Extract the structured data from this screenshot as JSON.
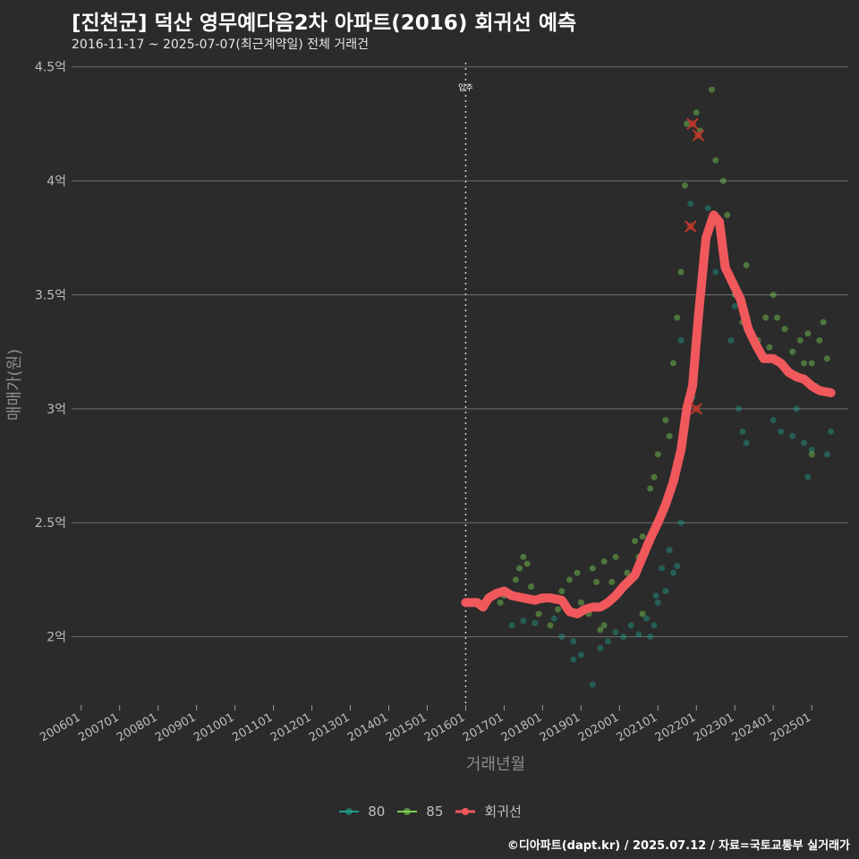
{
  "header": {
    "title": "[진천군] 덕산 영무예다음2차 아파트(2016) 회귀선 예측",
    "subtitle": "2016-11-17 ~ 2025-07-07(최근계약일) 전체 거래건"
  },
  "caption": "©디아파트(dapt.kr) / 2025.07.12 / 자료=국토교통부 실거래가",
  "colors": {
    "background": "#2b2b2b",
    "grid": "#6e6e6e",
    "series_80": "#1f9e89",
    "series_85": "#7ad151",
    "regression": "#f0585c",
    "outlier": "#c0392b"
  },
  "chart_data": {
    "type": "scatter",
    "title": "[진천군] 덕산 영무예다음2차 아파트(2016) 회귀선 예측",
    "xlabel": "거래년월",
    "ylabel": "매매가(원)",
    "ylim": [
      1.7,
      4.55
    ],
    "y_unit": "억",
    "yticks": [
      2,
      2.5,
      3,
      3.5,
      4,
      4.5
    ],
    "ytick_labels": [
      "2억",
      "2.5억",
      "3억",
      "3.5억",
      "4억",
      "4.5억"
    ],
    "xlim": [
      2005.75,
      2025.95
    ],
    "xticks": [
      "200601",
      "200701",
      "200801",
      "200901",
      "201001",
      "201101",
      "201201",
      "201301",
      "201401",
      "201501",
      "201601",
      "201701",
      "201801",
      "201901",
      "202001",
      "202101",
      "202201",
      "202301",
      "202401",
      "202501"
    ],
    "grid": "horizontal",
    "legend_position": "bottom",
    "annotation": {
      "x": 2016.0,
      "label": "입주"
    },
    "series": [
      {
        "name": "80",
        "points": [
          [
            2017.2,
            2.05
          ],
          [
            2017.5,
            2.07
          ],
          [
            2017.8,
            2.06
          ],
          [
            2018.3,
            2.08
          ],
          [
            2018.5,
            2.0
          ],
          [
            2018.8,
            1.98
          ],
          [
            2018.8,
            1.9
          ],
          [
            2019.0,
            1.92
          ],
          [
            2019.3,
            1.79
          ],
          [
            2019.5,
            1.95
          ],
          [
            2019.7,
            1.98
          ],
          [
            2019.9,
            2.02
          ],
          [
            2020.1,
            2.0
          ],
          [
            2020.3,
            2.05
          ],
          [
            2020.5,
            2.01
          ],
          [
            2020.7,
            2.08
          ],
          [
            2020.8,
            2.0
          ],
          [
            2020.9,
            2.05
          ],
          [
            2020.95,
            2.18
          ],
          [
            2021.0,
            2.15
          ],
          [
            2021.1,
            2.3
          ],
          [
            2021.2,
            2.2
          ],
          [
            2021.3,
            2.38
          ],
          [
            2021.4,
            2.28
          ],
          [
            2021.5,
            2.31
          ],
          [
            2021.6,
            2.5
          ],
          [
            2021.6,
            3.3
          ],
          [
            2021.85,
            3.9
          ],
          [
            2021.9,
            3.05
          ],
          [
            2022.3,
            3.88
          ],
          [
            2022.5,
            3.6
          ],
          [
            2022.9,
            3.3
          ],
          [
            2023.0,
            3.45
          ],
          [
            2023.1,
            3.0
          ],
          [
            2023.2,
            2.9
          ],
          [
            2023.3,
            2.85
          ],
          [
            2024.0,
            2.95
          ],
          [
            2024.2,
            2.9
          ],
          [
            2024.5,
            2.88
          ],
          [
            2024.6,
            3.0
          ],
          [
            2024.8,
            2.85
          ],
          [
            2024.9,
            2.7
          ],
          [
            2025.0,
            2.82
          ],
          [
            2025.5,
            2.9
          ],
          [
            2025.4,
            2.8
          ]
        ]
      },
      {
        "name": "85",
        "points": [
          [
            2016.9,
            2.15
          ],
          [
            2017.0,
            2.18
          ],
          [
            2017.3,
            2.25
          ],
          [
            2017.4,
            2.3
          ],
          [
            2017.5,
            2.35
          ],
          [
            2017.6,
            2.32
          ],
          [
            2017.7,
            2.22
          ],
          [
            2017.9,
            2.1
          ],
          [
            2018.0,
            2.16
          ],
          [
            2018.2,
            2.05
          ],
          [
            2018.4,
            2.12
          ],
          [
            2018.5,
            2.2
          ],
          [
            2018.7,
            2.25
          ],
          [
            2018.9,
            2.28
          ],
          [
            2019.0,
            2.15
          ],
          [
            2019.2,
            2.1
          ],
          [
            2019.3,
            2.3
          ],
          [
            2019.4,
            2.24
          ],
          [
            2019.5,
            2.03
          ],
          [
            2019.6,
            2.33
          ],
          [
            2019.8,
            2.24
          ],
          [
            2019.9,
            2.35
          ],
          [
            2020.0,
            2.2
          ],
          [
            2020.2,
            2.28
          ],
          [
            2020.4,
            2.42
          ],
          [
            2020.5,
            2.35
          ],
          [
            2020.6,
            2.44
          ],
          [
            2020.8,
            2.65
          ],
          [
            2020.9,
            2.7
          ],
          [
            2021.0,
            2.8
          ],
          [
            2021.2,
            2.95
          ],
          [
            2021.3,
            2.88
          ],
          [
            2021.4,
            3.2
          ],
          [
            2021.5,
            3.4
          ],
          [
            2021.6,
            3.6
          ],
          [
            2021.7,
            3.98
          ],
          [
            2021.75,
            4.25
          ],
          [
            2022.0,
            4.3
          ],
          [
            2022.1,
            4.22
          ],
          [
            2022.4,
            4.4
          ],
          [
            2022.5,
            4.09
          ],
          [
            2022.7,
            4.0
          ],
          [
            2022.8,
            3.85
          ],
          [
            2023.0,
            3.5
          ],
          [
            2023.2,
            3.38
          ],
          [
            2023.3,
            3.63
          ],
          [
            2023.6,
            3.3
          ],
          [
            2023.8,
            3.4
          ],
          [
            2023.9,
            3.27
          ],
          [
            2024.0,
            3.5
          ],
          [
            2024.1,
            3.4
          ],
          [
            2024.3,
            3.35
          ],
          [
            2024.5,
            3.25
          ],
          [
            2024.7,
            3.3
          ],
          [
            2024.8,
            3.2
          ],
          [
            2024.9,
            3.33
          ],
          [
            2025.0,
            3.2
          ],
          [
            2025.1,
            3.1
          ],
          [
            2025.2,
            3.3
          ],
          [
            2025.3,
            3.38
          ],
          [
            2025.4,
            3.22
          ],
          [
            2025.0,
            2.8
          ],
          [
            2024.6,
            3.15
          ],
          [
            2020.6,
            2.1
          ],
          [
            2019.6,
            2.05
          ]
        ]
      },
      {
        "name": "회귀선",
        "points": [
          [
            2016.0,
            2.15
          ],
          [
            2016.3,
            2.15
          ],
          [
            2016.45,
            2.13
          ],
          [
            2016.6,
            2.17
          ],
          [
            2016.8,
            2.19
          ],
          [
            2017.0,
            2.2
          ],
          [
            2017.2,
            2.18
          ],
          [
            2017.5,
            2.17
          ],
          [
            2017.8,
            2.16
          ],
          [
            2018.0,
            2.17
          ],
          [
            2018.2,
            2.17
          ],
          [
            2018.5,
            2.16
          ],
          [
            2018.7,
            2.11
          ],
          [
            2018.9,
            2.1
          ],
          [
            2019.1,
            2.12
          ],
          [
            2019.3,
            2.13
          ],
          [
            2019.5,
            2.13
          ],
          [
            2019.7,
            2.15
          ],
          [
            2019.9,
            2.18
          ],
          [
            2020.1,
            2.22
          ],
          [
            2020.4,
            2.27
          ],
          [
            2020.6,
            2.35
          ],
          [
            2020.8,
            2.43
          ],
          [
            2021.0,
            2.5
          ],
          [
            2021.2,
            2.58
          ],
          [
            2021.4,
            2.68
          ],
          [
            2021.6,
            2.82
          ],
          [
            2021.75,
            3.0
          ],
          [
            2021.9,
            3.1
          ],
          [
            2022.05,
            3.4
          ],
          [
            2022.25,
            3.75
          ],
          [
            2022.45,
            3.85
          ],
          [
            2022.6,
            3.82
          ],
          [
            2022.75,
            3.62
          ],
          [
            2022.95,
            3.55
          ],
          [
            2023.15,
            3.48
          ],
          [
            2023.35,
            3.35
          ],
          [
            2023.55,
            3.28
          ],
          [
            2023.75,
            3.22
          ],
          [
            2024.0,
            3.22
          ],
          [
            2024.2,
            3.2
          ],
          [
            2024.4,
            3.16
          ],
          [
            2024.6,
            3.14
          ],
          [
            2024.8,
            3.13
          ],
          [
            2025.0,
            3.1
          ],
          [
            2025.2,
            3.08
          ],
          [
            2025.5,
            3.07
          ]
        ]
      }
    ],
    "outliers": [
      [
        2021.9,
        4.25
      ],
      [
        2022.05,
        4.2
      ],
      [
        2021.85,
        3.8
      ],
      [
        2022.0,
        3.0
      ]
    ]
  },
  "legend": {
    "items": [
      {
        "label": "80"
      },
      {
        "label": "85"
      },
      {
        "label": "회귀선"
      }
    ]
  }
}
